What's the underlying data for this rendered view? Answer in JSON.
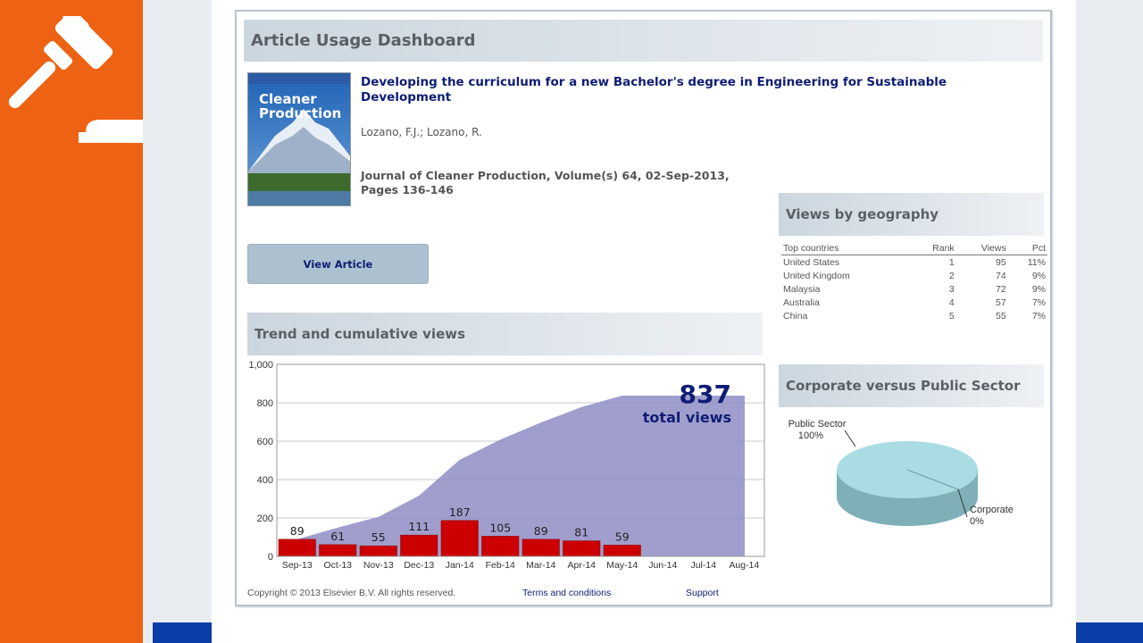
{
  "dashboard": {
    "title": "Article Usage Dashboard",
    "article": {
      "title": "Developing the curriculum for a new Bachelor's degree in Engineering for Sustainable Development",
      "authors": "Lozano, F.J.; Lozano, R.",
      "journal_line1": "Journal of Cleaner Production, Volume(s) 64, 02-Sep-2013,",
      "journal_line2": "Pages 136-146",
      "cover_title_line1": "Cleaner",
      "cover_title_line2": "Production"
    },
    "view_button": "View Article",
    "trend_header": "Trend and cumulative views",
    "geo_header": "Views by geography",
    "sector_header": "Corporate versus Public Sector",
    "total_views": "837",
    "total_views_label": "total views",
    "footer": {
      "copyright": "Copyright © 2013 Elsevier B.V. All rights reserved.",
      "terms": "Terms and conditions",
      "support": "Support"
    }
  },
  "geography": {
    "columns": [
      "Top countries",
      "Rank",
      "Views",
      "Pct"
    ],
    "rows": [
      {
        "country": "United States",
        "rank": "1",
        "views": "95",
        "pct": "11%"
      },
      {
        "country": "United Kingdom",
        "rank": "2",
        "views": "74",
        "pct": "9%"
      },
      {
        "country": "Malaysia",
        "rank": "3",
        "views": "72",
        "pct": "9%"
      },
      {
        "country": "Australia",
        "rank": "4",
        "views": "57",
        "pct": "7%"
      },
      {
        "country": "China",
        "rank": "5",
        "views": "55",
        "pct": "7%"
      }
    ]
  },
  "chart_data": [
    {
      "type": "bar",
      "categories": [
        "Sep-13",
        "Oct-13",
        "Nov-13",
        "Dec-13",
        "Jan-14",
        "Feb-14",
        "Mar-14",
        "Apr-14",
        "May-14",
        "Jun-14",
        "Jul-14",
        "Aug-14"
      ],
      "series": [
        {
          "values": [
            89,
            61,
            55,
            111,
            187,
            105,
            89,
            81,
            59,
            null,
            null,
            null
          ],
          "color": "#cc0000"
        },
        {
          "values": [
            89,
            150,
            205,
            316,
            503,
            608,
            697,
            778,
            837,
            837,
            837,
            837
          ],
          "color": "#8f8dc4"
        }
      ],
      "ylim": [
        0,
        1000
      ],
      "yticks": [
        0,
        200,
        400,
        600,
        800,
        1000
      ],
      "ytick_labels": [
        "0",
        "200",
        "400",
        "600",
        "800",
        "1,000"
      ],
      "grid": true
    },
    {
      "type": "pie",
      "labels": [
        "Public Sector",
        "Corporate"
      ],
      "values": [
        100,
        0
      ],
      "value_labels": [
        "100%",
        "0%"
      ],
      "colors": [
        "#a9dce3",
        "#7fb0b8"
      ]
    }
  ]
}
